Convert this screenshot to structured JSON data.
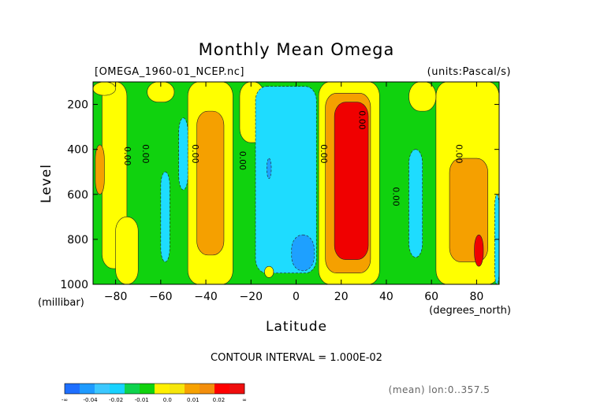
{
  "chart_data": {
    "type": "heatmap",
    "title": "Monthly Mean Omega",
    "file_label": "[OMEGA_1960-01_NCEP.nc]",
    "units_label": "(units:Pascal/s)",
    "xlabel": "Latitude",
    "x_units": "(degrees_north)",
    "ylabel": "Level",
    "y_units": "(millibar)",
    "xlim": [
      -90,
      90
    ],
    "ylim": [
      1000,
      100
    ],
    "x_ticks": [
      -80,
      -60,
      -40,
      -20,
      0,
      20,
      40,
      60,
      80
    ],
    "x_tick_labels": [
      "−80",
      "−60",
      "−40",
      "−20",
      "0",
      "20",
      "40",
      "60",
      "80"
    ],
    "y_ticks": [
      200,
      400,
      600,
      800,
      1000
    ],
    "y_tick_labels": [
      "200",
      "400",
      "600",
      "800",
      "1000"
    ],
    "contour_interval_text": "CONTOUR INTERVAL = 1.000E-02",
    "footnote": "(mean) lon:0..357.5",
    "contour_label": "0.00",
    "colorbar": {
      "colors": [
        "#1e6fff",
        "#1e9bff",
        "#3cc8ff",
        "#18d2ff",
        "#0ed34e",
        "#10d20e",
        "#fff000",
        "#f6e60c",
        "#f7a200",
        "#f38e0c",
        "#ff0000",
        "#ef0e0e"
      ],
      "labels": [
        "-∞",
        "-0.04",
        "-0.02",
        "-0.01",
        "0.0",
        "0.01",
        "0.02",
        "∞"
      ]
    },
    "band_colors": {
      "-3": "#1e73ff",
      "-2": "#1ea0ff",
      "-1": "#1edcff",
      "0": "#10d20e",
      "1": "#ffff00",
      "2": "#f5a000",
      "3": "#f00000"
    },
    "regions": [
      {
        "level": 0,
        "lat": [
          -90,
          90
        ],
        "p": [
          100,
          1000
        ]
      },
      {
        "level": 1,
        "lat": [
          -86,
          -75
        ],
        "p": [
          100,
          930
        ]
      },
      {
        "level": 1,
        "lat": [
          -80,
          -70
        ],
        "p": [
          700,
          1000
        ]
      },
      {
        "level": 2,
        "lat": [
          -89,
          -85
        ],
        "p": [
          380,
          600
        ]
      },
      {
        "level": 1,
        "lat": [
          -48,
          -28
        ],
        "p": [
          100,
          1000
        ]
      },
      {
        "level": 2,
        "lat": [
          -44,
          -32
        ],
        "p": [
          230,
          870
        ]
      },
      {
        "level": 1,
        "lat": [
          -25,
          -14
        ],
        "p": [
          100,
          370
        ]
      },
      {
        "level": 1,
        "lat": [
          -90,
          -80
        ],
        "p": [
          100,
          160
        ]
      },
      {
        "level": 1,
        "lat": [
          -66,
          -54
        ],
        "p": [
          100,
          190
        ]
      },
      {
        "level": -1,
        "lat": [
          -60,
          -56
        ],
        "p": [
          500,
          900
        ]
      },
      {
        "level": -1,
        "lat": [
          -52,
          -48
        ],
        "p": [
          260,
          580
        ]
      },
      {
        "level": -1,
        "lat": [
          -18,
          9
        ],
        "p": [
          120,
          950
        ]
      },
      {
        "level": -2,
        "lat": [
          -13,
          -11
        ],
        "p": [
          440,
          530
        ]
      },
      {
        "level": -2,
        "lat": [
          -2,
          8
        ],
        "p": [
          780,
          940
        ]
      },
      {
        "level": 1,
        "lat": [
          10,
          37
        ],
        "p": [
          100,
          1000
        ]
      },
      {
        "level": 2,
        "lat": [
          13,
          33
        ],
        "p": [
          150,
          950
        ]
      },
      {
        "level": 3,
        "lat": [
          17,
          32
        ],
        "p": [
          190,
          890
        ]
      },
      {
        "level": 1,
        "lat": [
          62,
          90
        ],
        "p": [
          100,
          1000
        ]
      },
      {
        "level": 2,
        "lat": [
          68,
          85
        ],
        "p": [
          440,
          900
        ]
      },
      {
        "level": 3,
        "lat": [
          79,
          83
        ],
        "p": [
          780,
          920
        ]
      },
      {
        "level": 1,
        "lat": [
          50,
          62
        ],
        "p": [
          100,
          230
        ]
      },
      {
        "level": 1,
        "lat": [
          -14,
          -10
        ],
        "p": [
          920,
          970
        ]
      },
      {
        "level": -1,
        "lat": [
          50,
          56
        ],
        "p": [
          400,
          880
        ]
      },
      {
        "level": -1,
        "lat": [
          88,
          90
        ],
        "p": [
          600,
          1000
        ]
      }
    ]
  }
}
